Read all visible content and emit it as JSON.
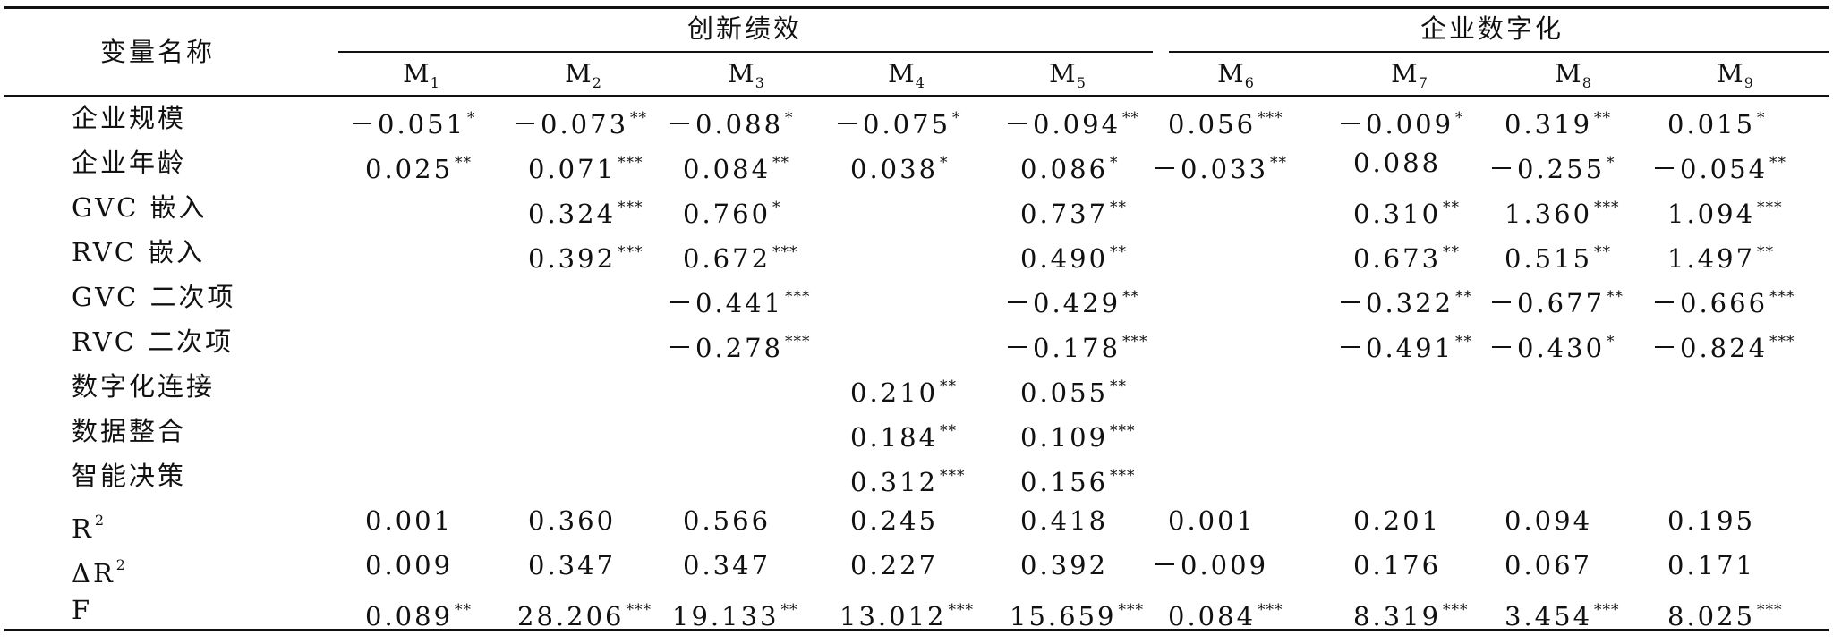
{
  "header": {
    "var_label": "变量名称",
    "group1": "创新绩效",
    "group2": "企业数字化",
    "models": [
      {
        "base": "M",
        "sub": "1"
      },
      {
        "base": "M",
        "sub": "2"
      },
      {
        "base": "M",
        "sub": "3"
      },
      {
        "base": "M",
        "sub": "4"
      },
      {
        "base": "M",
        "sub": "5"
      },
      {
        "base": "M",
        "sub": "6"
      },
      {
        "base": "M",
        "sub": "7"
      },
      {
        "base": "M",
        "sub": "8"
      },
      {
        "base": "M",
        "sub": "9"
      }
    ]
  },
  "rows": [
    {
      "label": "企业规模",
      "cells": [
        {
          "v": "－0.051",
          "s": "*"
        },
        {
          "v": "－0.073",
          "s": "**"
        },
        {
          "v": "－0.088",
          "s": "*"
        },
        {
          "v": "－0.075",
          "s": "*"
        },
        {
          "v": "－0.094",
          "s": "**"
        },
        {
          "v": "0.056",
          "s": "***"
        },
        {
          "v": "－0.009",
          "s": "*"
        },
        {
          "v": "0.319",
          "s": "**"
        },
        {
          "v": "0.015",
          "s": "*"
        }
      ]
    },
    {
      "label": "企业年龄",
      "cells": [
        {
          "v": "0.025",
          "s": "**"
        },
        {
          "v": "0.071",
          "s": "***"
        },
        {
          "v": "0.084",
          "s": "**"
        },
        {
          "v": "0.038",
          "s": "*"
        },
        {
          "v": "0.086",
          "s": "*"
        },
        {
          "v": "－0.033",
          "s": "**"
        },
        {
          "v": "0.088",
          "s": ""
        },
        {
          "v": "－0.255",
          "s": "*"
        },
        {
          "v": "－0.054",
          "s": "**"
        }
      ]
    },
    {
      "label": "GVC 嵌入",
      "cells": [
        {
          "v": "",
          "s": ""
        },
        {
          "v": "0.324",
          "s": "***"
        },
        {
          "v": "0.760",
          "s": "*"
        },
        {
          "v": "",
          "s": ""
        },
        {
          "v": "0.737",
          "s": "**"
        },
        {
          "v": "",
          "s": ""
        },
        {
          "v": "0.310",
          "s": "**"
        },
        {
          "v": "1.360",
          "s": "***"
        },
        {
          "v": "1.094",
          "s": "***"
        }
      ]
    },
    {
      "label": "RVC 嵌入",
      "cells": [
        {
          "v": "",
          "s": ""
        },
        {
          "v": "0.392",
          "s": "***"
        },
        {
          "v": "0.672",
          "s": "***"
        },
        {
          "v": "",
          "s": ""
        },
        {
          "v": "0.490",
          "s": "**"
        },
        {
          "v": "",
          "s": ""
        },
        {
          "v": "0.673",
          "s": "**"
        },
        {
          "v": "0.515",
          "s": "**"
        },
        {
          "v": "1.497",
          "s": "**"
        }
      ]
    },
    {
      "label": "GVC 二次项",
      "cells": [
        {
          "v": "",
          "s": ""
        },
        {
          "v": "",
          "s": ""
        },
        {
          "v": "－0.441",
          "s": "***"
        },
        {
          "v": "",
          "s": ""
        },
        {
          "v": "－0.429",
          "s": "**"
        },
        {
          "v": "",
          "s": ""
        },
        {
          "v": "－0.322",
          "s": "**"
        },
        {
          "v": "－0.677",
          "s": "**"
        },
        {
          "v": "－0.666",
          "s": "***"
        }
      ]
    },
    {
      "label": "RVC 二次项",
      "cells": [
        {
          "v": "",
          "s": ""
        },
        {
          "v": "",
          "s": ""
        },
        {
          "v": "－0.278",
          "s": "***"
        },
        {
          "v": "",
          "s": ""
        },
        {
          "v": "－0.178",
          "s": "***"
        },
        {
          "v": "",
          "s": ""
        },
        {
          "v": "－0.491",
          "s": "**"
        },
        {
          "v": "－0.430",
          "s": "*"
        },
        {
          "v": "－0.824",
          "s": "***"
        }
      ]
    },
    {
      "label": "数字化连接",
      "cells": [
        {
          "v": "",
          "s": ""
        },
        {
          "v": "",
          "s": ""
        },
        {
          "v": "",
          "s": ""
        },
        {
          "v": "0.210",
          "s": "**"
        },
        {
          "v": "0.055",
          "s": "**"
        },
        {
          "v": "",
          "s": ""
        },
        {
          "v": "",
          "s": ""
        },
        {
          "v": "",
          "s": ""
        },
        {
          "v": "",
          "s": ""
        }
      ]
    },
    {
      "label": "数据整合",
      "cells": [
        {
          "v": "",
          "s": ""
        },
        {
          "v": "",
          "s": ""
        },
        {
          "v": "",
          "s": ""
        },
        {
          "v": "0.184",
          "s": "**"
        },
        {
          "v": "0.109",
          "s": "***"
        },
        {
          "v": "",
          "s": ""
        },
        {
          "v": "",
          "s": ""
        },
        {
          "v": "",
          "s": ""
        },
        {
          "v": "",
          "s": ""
        }
      ]
    },
    {
      "label": "智能决策",
      "cells": [
        {
          "v": "",
          "s": ""
        },
        {
          "v": "",
          "s": ""
        },
        {
          "v": "",
          "s": ""
        },
        {
          "v": "0.312",
          "s": "***"
        },
        {
          "v": "0.156",
          "s": "***"
        },
        {
          "v": "",
          "s": ""
        },
        {
          "v": "",
          "s": ""
        },
        {
          "v": "",
          "s": ""
        },
        {
          "v": "",
          "s": ""
        }
      ]
    },
    {
      "label": "R",
      "sup": "2",
      "cells": [
        {
          "v": "0.001",
          "s": ""
        },
        {
          "v": "0.360",
          "s": ""
        },
        {
          "v": "0.566",
          "s": ""
        },
        {
          "v": "0.245",
          "s": ""
        },
        {
          "v": "0.418",
          "s": ""
        },
        {
          "v": "0.001",
          "s": ""
        },
        {
          "v": "0.201",
          "s": ""
        },
        {
          "v": "0.094",
          "s": ""
        },
        {
          "v": "0.195",
          "s": ""
        }
      ]
    },
    {
      "label": "ΔR",
      "sup": "2",
      "cells": [
        {
          "v": "0.009",
          "s": ""
        },
        {
          "v": "0.347",
          "s": ""
        },
        {
          "v": "0.347",
          "s": ""
        },
        {
          "v": "0.227",
          "s": ""
        },
        {
          "v": "0.392",
          "s": ""
        },
        {
          "v": "－0.009",
          "s": ""
        },
        {
          "v": "0.176",
          "s": ""
        },
        {
          "v": "0.067",
          "s": ""
        },
        {
          "v": "0.171",
          "s": ""
        }
      ]
    },
    {
      "label": "F",
      "cells": [
        {
          "v": "0.089",
          "s": "**"
        },
        {
          "v": "28.206",
          "s": "***"
        },
        {
          "v": "19.133",
          "s": "**"
        },
        {
          "v": "13.012",
          "s": "***"
        },
        {
          "v": "15.659",
          "s": "***"
        },
        {
          "v": "0.084",
          "s": "***"
        },
        {
          "v": "8.319",
          "s": "***"
        },
        {
          "v": "3.454",
          "s": "***"
        },
        {
          "v": "8.025",
          "s": "***"
        }
      ]
    }
  ]
}
